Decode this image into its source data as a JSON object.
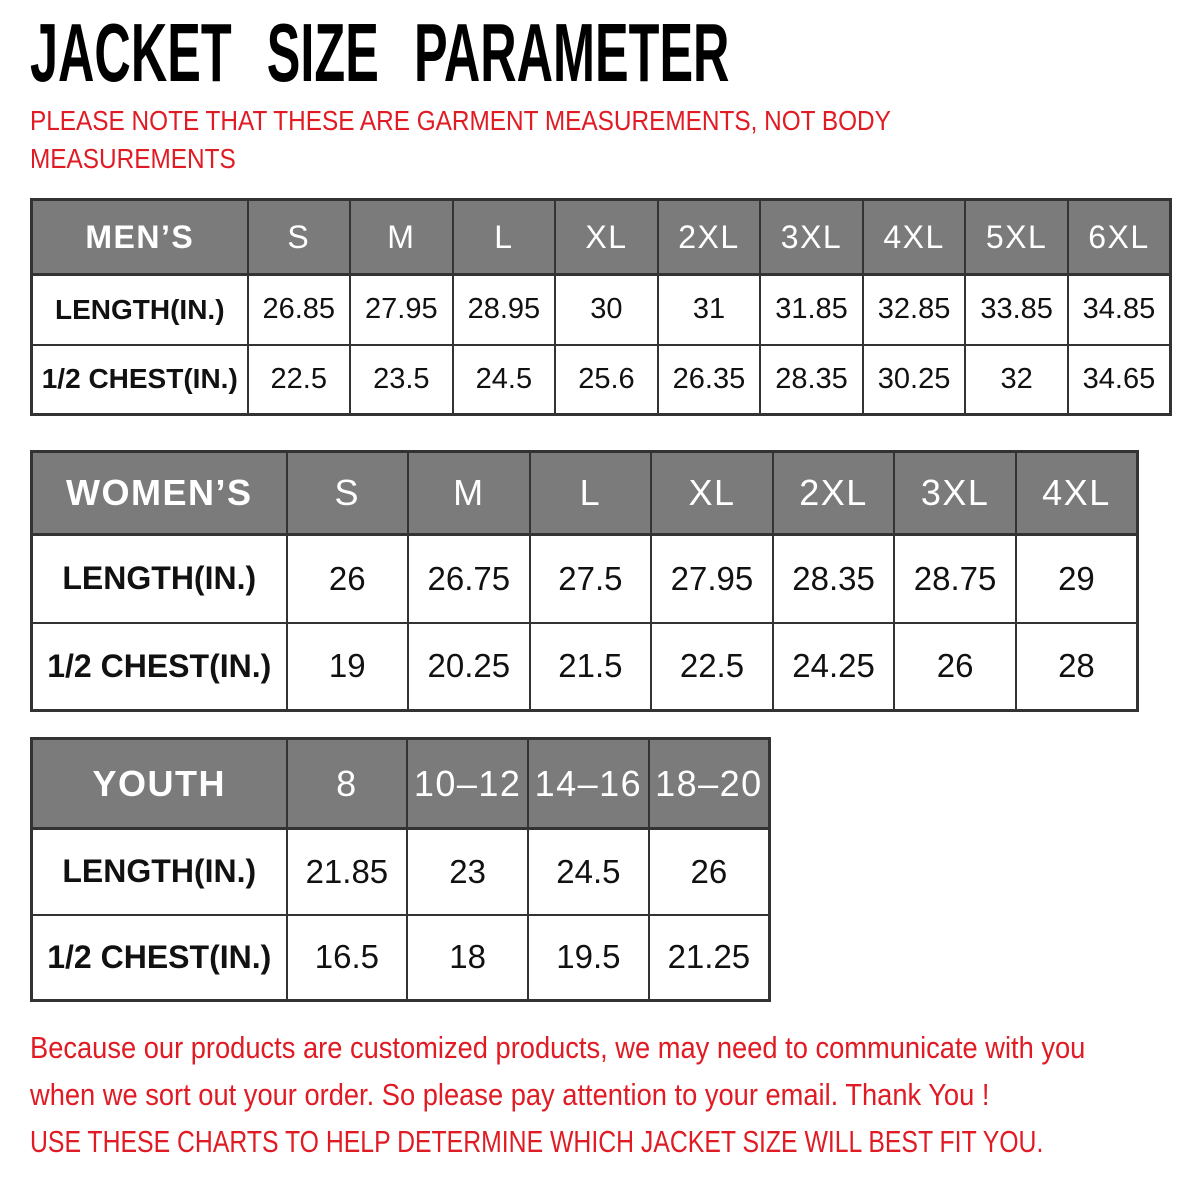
{
  "page": {
    "title": "JACKET SIZE PARAMETER",
    "note_lines": [
      "PLEASE NOTE THAT THESE ARE GARMENT MEASUREMENTS, NOT BODY",
      "MEASUREMENTS"
    ],
    "footer_lines": [
      "Because our products are customized products, we may need to communicate with you",
      "when we sort out your order. So please pay attention to your email. Thank You !"
    ],
    "footer_cta": "USE THESE CHARTS TO HELP DETERMINE WHICH JACKET SIZE WILL BEST FIT YOU."
  },
  "colors": {
    "accent_red": "#e01b24",
    "header_gray": "#7b7b7b",
    "table_border": "#333333"
  },
  "tables": [
    {
      "id": "mens",
      "header_label": "MEN’S",
      "sizes": [
        "S",
        "M",
        "L",
        "XL",
        "2XL",
        "3XL",
        "4XL",
        "5XL",
        "6XL"
      ],
      "rows": [
        {
          "label": "LENGTH(IN.)",
          "values": [
            "26.85",
            "27.95",
            "28.95",
            "30",
            "31",
            "31.85",
            "32.85",
            "33.85",
            "34.85"
          ]
        },
        {
          "label": "1/2 CHEST(IN.)",
          "values": [
            "22.5",
            "23.5",
            "24.5",
            "25.6",
            "26.35",
            "28.35",
            "30.25",
            "32",
            "34.65"
          ]
        }
      ]
    },
    {
      "id": "womens",
      "header_label": "WOMEN’S",
      "sizes": [
        "S",
        "M",
        "L",
        "XL",
        "2XL",
        "3XL",
        "4XL"
      ],
      "rows": [
        {
          "label": "LENGTH(IN.)",
          "values": [
            "26",
            "26.75",
            "27.5",
            "27.95",
            "28.35",
            "28.75",
            "29"
          ]
        },
        {
          "label": "1/2 CHEST(IN.)",
          "values": [
            "19",
            "20.25",
            "21.5",
            "22.5",
            "24.25",
            "26",
            "28"
          ]
        }
      ]
    },
    {
      "id": "youth",
      "header_label": "YOUTH",
      "sizes": [
        "8",
        "10–12",
        "14–16",
        "18–20"
      ],
      "rows": [
        {
          "label": "LENGTH(IN.)",
          "values": [
            "21.85",
            "23",
            "24.5",
            "26"
          ]
        },
        {
          "label": "1/2 CHEST(IN.)",
          "values": [
            "16.5",
            "18",
            "19.5",
            "21.25"
          ]
        }
      ]
    }
  ]
}
